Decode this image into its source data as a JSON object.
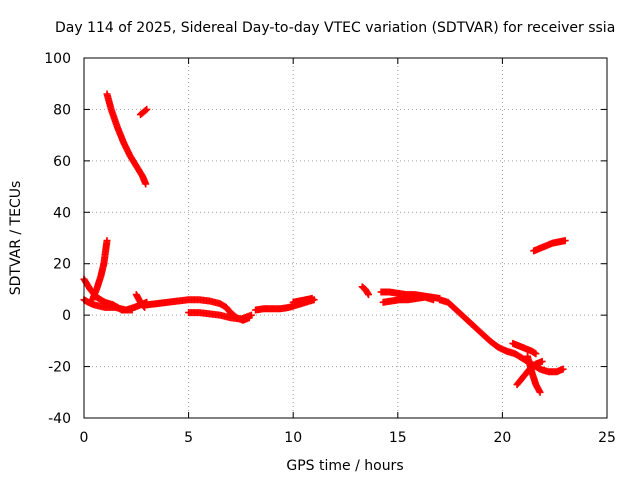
{
  "chart_data": {
    "type": "scatter",
    "title": "Day 114 of 2025, Sidereal Day-to-day VTEC variation (SDTVAR) for receiver ssia",
    "xlabel": "GPS time / hours",
    "ylabel": "SDTVAR / TECUs",
    "xlim": [
      0,
      25
    ],
    "ylim": [
      -40,
      100
    ],
    "xticks": [
      0,
      5,
      10,
      15,
      20,
      25
    ],
    "yticks": [
      -40,
      -20,
      0,
      20,
      40,
      60,
      80,
      100
    ],
    "grid": true,
    "marker": "+",
    "color": "#ff0000",
    "series": [
      {
        "name": "arc-1",
        "x": [
          1.1,
          1.3,
          1.6,
          1.9,
          2.2,
          2.5,
          2.8,
          2.95
        ],
        "y": [
          86,
          80,
          73,
          67,
          62,
          58,
          54,
          51
        ]
      },
      {
        "name": "arc-2",
        "x": [
          2.7,
          2.85,
          3.0
        ],
        "y": [
          78,
          79,
          80
        ]
      },
      {
        "name": "arc-3",
        "x": [
          0.4,
          0.6,
          0.8,
          0.95,
          1.05,
          1.1
        ],
        "y": [
          6,
          10,
          15,
          20,
          26,
          29
        ]
      },
      {
        "name": "arc-4",
        "x": [
          0.0,
          0.3,
          0.6,
          1.0,
          1.4,
          1.8,
          2.0,
          2.4,
          2.7,
          3.0
        ],
        "y": [
          14,
          10,
          7,
          5,
          4,
          2,
          2,
          3,
          4,
          5
        ]
      },
      {
        "name": "arc-5",
        "x": [
          0.0,
          0.2,
          0.5,
          1.0,
          1.5,
          2.0,
          2.3
        ],
        "y": [
          6,
          5,
          4,
          3,
          3,
          2,
          2
        ]
      },
      {
        "name": "arc-6",
        "x": [
          2.5,
          2.7,
          2.9
        ],
        "y": [
          8,
          5,
          3
        ]
      },
      {
        "name": "arc-7",
        "x": [
          3.0,
          3.5,
          4.0,
          4.5,
          5.0,
          5.5,
          6.0,
          6.5,
          6.8,
          7.0,
          7.3,
          7.6,
          7.9
        ],
        "y": [
          4,
          4.5,
          5,
          5.5,
          6,
          6,
          5.5,
          4.5,
          3,
          1,
          -1,
          -2,
          -1
        ]
      },
      {
        "name": "arc-8",
        "x": [
          5.0,
          5.5,
          6.0,
          6.5,
          7.0,
          7.5,
          8.0
        ],
        "y": [
          1,
          1,
          0.5,
          0,
          -1,
          -1.5,
          0
        ]
      },
      {
        "name": "arc-9",
        "x": [
          8.2,
          8.6,
          9.0,
          9.4,
          9.8,
          10.2,
          10.6,
          11.0
        ],
        "y": [
          2,
          2.5,
          2.5,
          2.5,
          3,
          4,
          5,
          6
        ]
      },
      {
        "name": "arc-10",
        "x": [
          10.0,
          10.3,
          10.6,
          10.9
        ],
        "y": [
          5,
          5.5,
          6,
          6.5
        ]
      },
      {
        "name": "arc-11",
        "x": [
          13.3,
          13.45,
          13.6
        ],
        "y": [
          11,
          10,
          8
        ]
      },
      {
        "name": "arc-12",
        "x": [
          14.2,
          14.6,
          15.0,
          15.4,
          15.8,
          16.2,
          16.6,
          17.0
        ],
        "y": [
          9,
          9,
          8.5,
          8,
          8,
          7.5,
          7,
          6.5
        ]
      },
      {
        "name": "arc-13",
        "x": [
          14.3,
          14.7,
          15.1,
          15.5,
          15.9,
          16.3,
          16.7
        ],
        "y": [
          5,
          5.5,
          6,
          6,
          6.5,
          7,
          6
        ]
      },
      {
        "name": "arc-14",
        "x": [
          17.0,
          17.4,
          17.8,
          18.2,
          18.6,
          19.0,
          19.4,
          19.8,
          20.2
        ],
        "y": [
          6,
          5,
          2,
          -1,
          -4,
          -7,
          -10,
          -12.5,
          -14
        ]
      },
      {
        "name": "arc-15",
        "x": [
          20.2,
          20.6,
          21.0,
          21.4,
          21.8,
          22.2,
          22.6,
          22.9
        ],
        "y": [
          -14,
          -15,
          -17,
          -19,
          -21,
          -22,
          -22,
          -21
        ]
      },
      {
        "name": "arc-16",
        "x": [
          20.5,
          20.8,
          21.1,
          21.4,
          21.6
        ],
        "y": [
          -11,
          -12,
          -13,
          -14,
          -15
        ]
      },
      {
        "name": "arc-17",
        "x": [
          20.7,
          21.0,
          21.3,
          21.6,
          21.9
        ],
        "y": [
          -27,
          -24,
          -21,
          -19,
          -18
        ]
      },
      {
        "name": "arc-18",
        "x": [
          21.2,
          21.4,
          21.6,
          21.8
        ],
        "y": [
          -16,
          -22,
          -27,
          -30
        ]
      },
      {
        "name": "arc-19",
        "x": [
          21.5,
          21.8,
          22.1,
          22.4,
          22.7,
          23.0
        ],
        "y": [
          25,
          26,
          27,
          28,
          28.5,
          29
        ]
      }
    ]
  }
}
